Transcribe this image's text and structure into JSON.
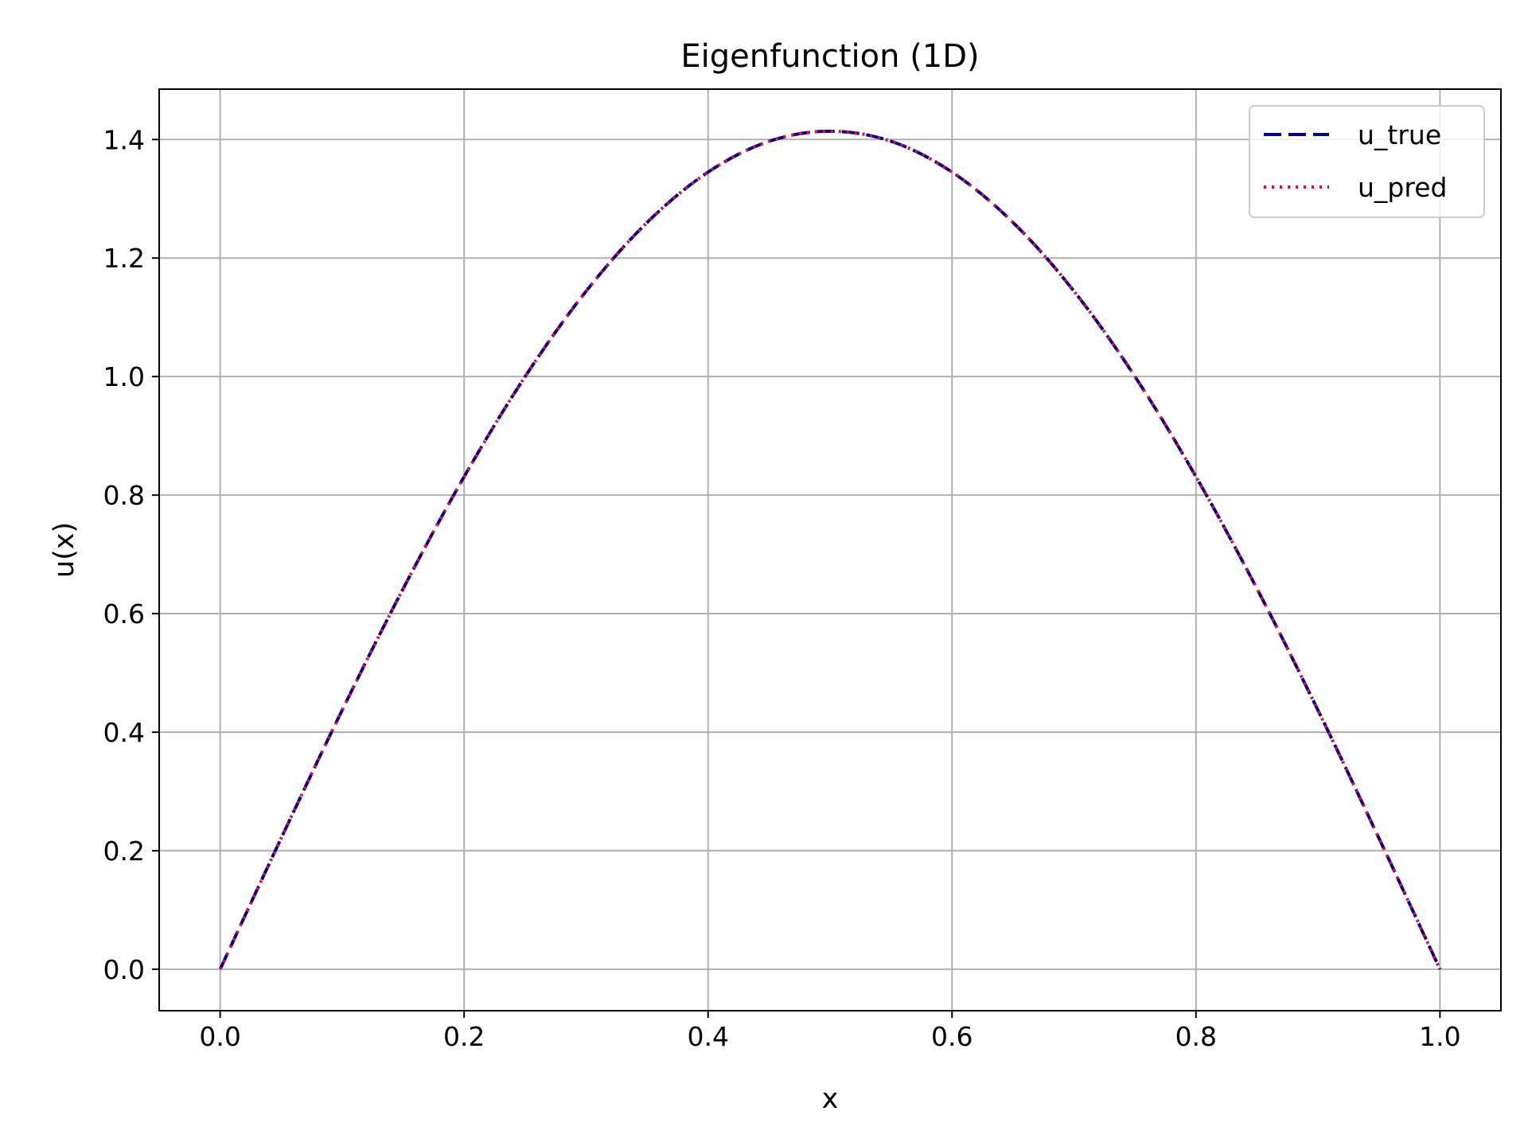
{
  "chart_data": {
    "type": "line",
    "title": "Eigenfunction (1D)",
    "xlabel": "x",
    "ylabel": "u(x)",
    "xlim": [
      -0.05,
      1.05
    ],
    "ylim": [
      -0.07,
      1.485
    ],
    "x_ticks": [
      0.0,
      0.2,
      0.4,
      0.6,
      0.8,
      1.0
    ],
    "x_tick_labels": [
      "0.0",
      "0.2",
      "0.4",
      "0.6",
      "0.8",
      "1.0"
    ],
    "y_ticks": [
      0.0,
      0.2,
      0.4,
      0.6,
      0.8,
      1.0,
      1.2,
      1.4
    ],
    "y_tick_labels": [
      "0.0",
      "0.2",
      "0.4",
      "0.6",
      "0.8",
      "1.0",
      "1.2",
      "1.4"
    ],
    "grid": true,
    "legend_position": "top-right",
    "x": [
      0.0,
      0.05,
      0.1,
      0.15,
      0.2,
      0.25,
      0.3,
      0.35,
      0.4,
      0.45,
      0.5,
      0.55,
      0.6,
      0.65,
      0.7,
      0.75,
      0.8,
      0.85,
      0.9,
      0.95,
      1.0
    ],
    "series": [
      {
        "name": "u_true",
        "color": "#000080",
        "style": "dashed",
        "values": [
          0.0,
          0.221,
          0.437,
          0.642,
          0.831,
          1.0,
          1.144,
          1.26,
          1.345,
          1.397,
          1.414,
          1.397,
          1.345,
          1.26,
          1.144,
          1.0,
          0.831,
          0.642,
          0.437,
          0.221,
          0.0
        ]
      },
      {
        "name": "u_pred",
        "color": "#dc143c",
        "style": "dotted",
        "values": [
          0.0,
          0.221,
          0.437,
          0.642,
          0.831,
          1.0,
          1.144,
          1.26,
          1.345,
          1.397,
          1.414,
          1.397,
          1.345,
          1.26,
          1.144,
          1.0,
          0.831,
          0.642,
          0.437,
          0.221,
          0.0
        ]
      }
    ]
  }
}
